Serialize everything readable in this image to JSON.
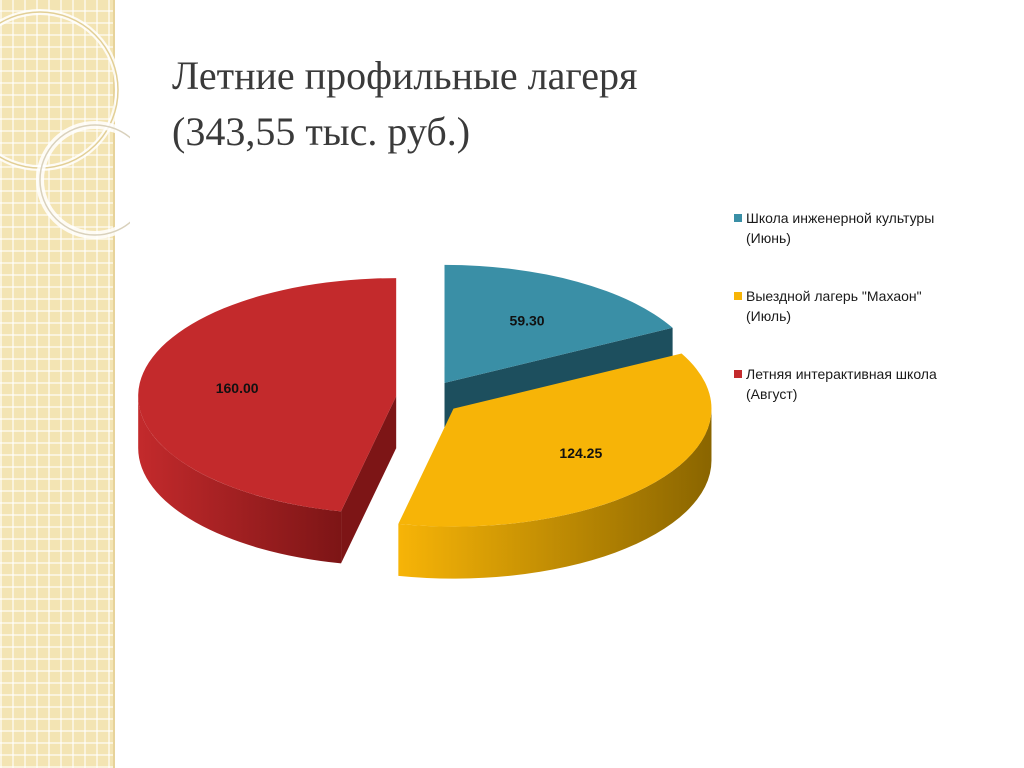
{
  "title": {
    "line1": "Летние профильные лагеря",
    "line2": "(343,55 тыс. руб.)"
  },
  "chart_data": {
    "type": "pie",
    "style": "3d-exploded",
    "legend_position": "right",
    "categories": [
      "Школа инженерной культуры\n(Июнь)",
      "Выездной лагерь \"Махаон\"\n(Июль)",
      "Летняя интерактивная школа\n(Август)"
    ],
    "values": [
      59.3,
      124.25,
      160.0
    ],
    "value_labels": [
      "59.30",
      "124.25",
      "160.00"
    ],
    "colors": [
      "#3a8fa6",
      "#f7b407",
      "#c32a2c"
    ],
    "side_colors": [
      "#1d4f5e",
      "#8a6500",
      "#7d1516"
    ]
  }
}
